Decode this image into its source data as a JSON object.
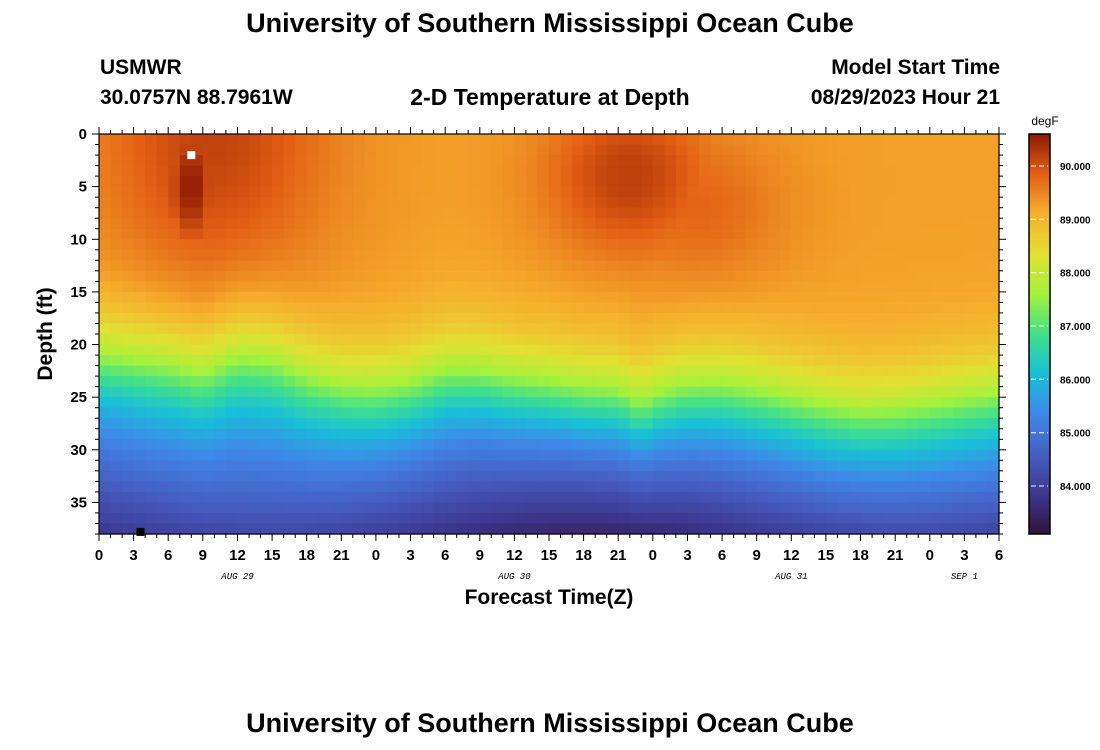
{
  "header": {
    "title": "University of Southern Mississippi Ocean Cube",
    "station_name": "USMWR",
    "station_coords": "30.0757N  88.7961W",
    "plot_title": "2-D Temperature at Depth",
    "model_label": "Model Start Time",
    "model_time": "08/29/2023 Hour 21"
  },
  "footer": {
    "title": "University of Southern Mississippi Ocean Cube"
  },
  "chart_data": {
    "type": "heatmap",
    "title": "2-D Temperature at Depth",
    "xlabel": "Forecast Time(Z)",
    "ylabel": "Depth (ft)",
    "x_range_hours": [
      0,
      78
    ],
    "ylim": [
      0,
      38
    ],
    "y_inverted": true,
    "x_tick_labels": [
      "0",
      "3",
      "6",
      "9",
      "12",
      "15",
      "18",
      "21",
      "0",
      "3",
      "6",
      "9",
      "12",
      "15",
      "18",
      "21",
      "0",
      "3",
      "6",
      "9",
      "12",
      "15",
      "18",
      "21",
      "0",
      "3",
      "6"
    ],
    "y_ticks": [
      0,
      5,
      10,
      15,
      20,
      25,
      30,
      35
    ],
    "date_labels": [
      {
        "text": "AUG 29",
        "hour": 12
      },
      {
        "text": "AUG 30",
        "hour": 36
      },
      {
        "text": "AUG 31",
        "hour": 60
      },
      {
        "text": "SEP 1",
        "hour": 75
      }
    ],
    "colorbar": {
      "unit": "degF",
      "min": 83.1,
      "max": 90.6,
      "ticks": [
        84,
        85,
        86,
        87,
        88,
        89,
        90
      ],
      "tick_labels": [
        "84.000",
        "85.000",
        "86.000",
        "87.000",
        "88.000",
        "89.000",
        "90.000"
      ]
    },
    "thermocline_depth_ft": [
      {
        "hour": 0,
        "depth": 20.2
      },
      {
        "hour": 6,
        "depth": 20.8
      },
      {
        "hour": 9,
        "depth": 21.5
      },
      {
        "hour": 12,
        "depth": 19.8
      },
      {
        "hour": 15,
        "depth": 20.2
      },
      {
        "hour": 18,
        "depth": 21.8
      },
      {
        "hour": 21,
        "depth": 22.8
      },
      {
        "hour": 24,
        "depth": 23.2
      },
      {
        "hour": 27,
        "depth": 22.8
      },
      {
        "hour": 30,
        "depth": 21.8
      },
      {
        "hour": 33,
        "depth": 22.0
      },
      {
        "hour": 36,
        "depth": 22.8
      },
      {
        "hour": 39,
        "depth": 23.2
      },
      {
        "hour": 42,
        "depth": 23.8
      },
      {
        "hour": 45,
        "depth": 24.0
      },
      {
        "hour": 47,
        "depth": 25.2
      },
      {
        "hour": 48,
        "depth": 24.4
      },
      {
        "hour": 51,
        "depth": 23.4
      },
      {
        "hour": 54,
        "depth": 23.2
      },
      {
        "hour": 57,
        "depth": 23.6
      },
      {
        "hour": 60,
        "depth": 24.2
      },
      {
        "hour": 63,
        "depth": 24.8
      },
      {
        "hour": 66,
        "depth": 25.2
      },
      {
        "hour": 69,
        "depth": 25.0
      },
      {
        "hour": 72,
        "depth": 24.5
      },
      {
        "hour": 75,
        "depth": 24.0
      },
      {
        "hour": 78,
        "depth": 23.6
      }
    ],
    "surface_hot_cores": [
      {
        "hour": 8,
        "depth": 5,
        "temp_degF": 90.6
      },
      {
        "hour": 46,
        "depth": 4,
        "temp_degF": 90.2
      },
      {
        "hour": 52,
        "depth": 7,
        "temp_degF": 89.8
      }
    ],
    "markers": [
      {
        "hour": 8,
        "depth": 2,
        "color": "#ffffff"
      },
      {
        "hour": 3.6,
        "depth": 37.8,
        "color": "#000000"
      }
    ]
  }
}
